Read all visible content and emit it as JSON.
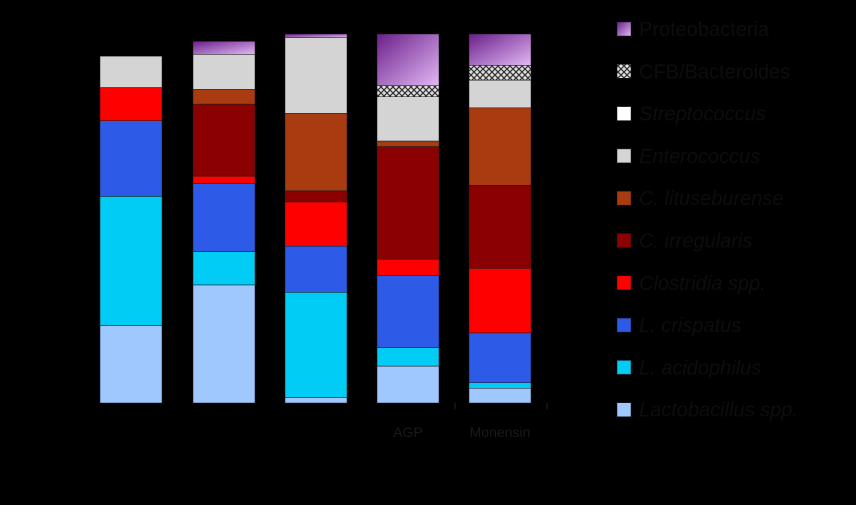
{
  "chart_data": {
    "type": "bar",
    "stacked": true,
    "normalized": true,
    "ylim": [
      0,
      100
    ],
    "ylabel": "",
    "categories": [
      "",
      "",
      "",
      "AGP",
      "Monensin"
    ],
    "legend_position": "right",
    "series": [
      {
        "name": "Lactobacillus  spp.",
        "italic": true,
        "color": "#9fc8ff",
        "values": [
          21,
          32,
          1.5,
          10,
          4
        ]
      },
      {
        "name": "L.  acidophilus",
        "italic": true,
        "color": "#00ccf5",
        "values": [
          35,
          9,
          28.5,
          5,
          1.5
        ]
      },
      {
        "name": "L.  crispatus",
        "italic": true,
        "color": "#2d5ae6",
        "values": [
          20.5,
          18.5,
          12.5,
          19.5,
          13.5
        ]
      },
      {
        "name": "Clostridia spp.",
        "italic": true,
        "color": "#ff0000",
        "values": [
          9,
          2,
          12,
          4.5,
          17.5
        ]
      },
      {
        "name": "C.  irregularis",
        "italic": true,
        "color": "#8b0000",
        "values": [
          0,
          19.5,
          3,
          30.5,
          22.5
        ]
      },
      {
        "name": "C.  lituseburense",
        "italic": true,
        "color": "#a83c10",
        "values": [
          0,
          4,
          21,
          1.5,
          21
        ]
      },
      {
        "name": "Enterococcus",
        "italic": true,
        "color": "#d4d4d4",
        "values": [
          8.5,
          9.5,
          20.5,
          12,
          7.5
        ]
      },
      {
        "name": "Streptococcus",
        "italic": true,
        "color": "#ffffff",
        "values": [
          0,
          0,
          0,
          0,
          0
        ]
      },
      {
        "name": "CFB/Bacteroides",
        "italic": false,
        "color": "#6b6b6b",
        "pattern": "crosshatch",
        "values": [
          0,
          0,
          0,
          3,
          4
        ]
      },
      {
        "name": "Proteobacteria",
        "italic": false,
        "color": "#a64fc8",
        "gradient": true,
        "values": [
          0,
          3.5,
          1,
          14,
          8.5
        ]
      }
    ]
  }
}
